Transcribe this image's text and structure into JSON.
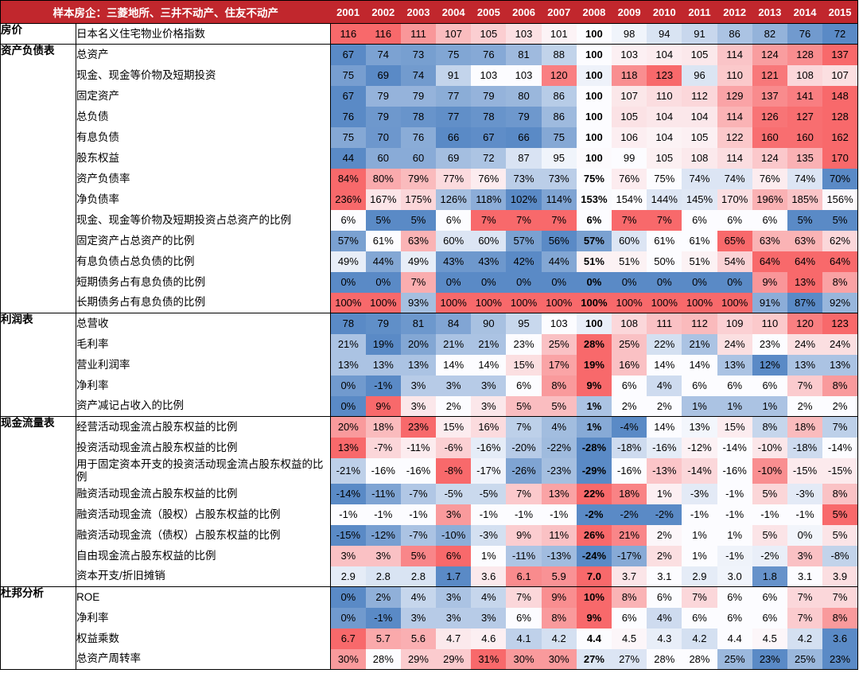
{
  "colors": {
    "header_background": "#C1272D",
    "scale_low": "#5A8AC6",
    "scale_mid": "#FCFCFF",
    "scale_high": "#F8696B"
  },
  "chart_data": {
    "type": "heatmap",
    "corner_header": "样本房企：三菱地所、三井不动产、住友不动产",
    "columns": [
      "2001",
      "2002",
      "2003",
      "2004",
      "2005",
      "2006",
      "2007",
      "2008",
      "2009",
      "2010",
      "2011",
      "2012",
      "2013",
      "2014",
      "2015"
    ],
    "sections": [
      {
        "category": "房价",
        "rows": [
          {
            "label": "日本名义住宅物业价格指数",
            "values": [
              "116",
              "116",
              "111",
              "107",
              "105",
              "103",
              "101",
              "100",
              "98",
              "94",
              "91",
              "86",
              "82",
              "76",
              "72"
            ]
          }
        ]
      },
      {
        "category": "资产负债表",
        "rows": [
          {
            "label": "总资产",
            "values": [
              "67",
              "74",
              "73",
              "75",
              "76",
              "81",
              "88",
              "100",
              "103",
              "104",
              "105",
              "114",
              "124",
              "128",
              "137"
            ]
          },
          {
            "label": "现金、现金等价物及短期投资",
            "values": [
              "75",
              "69",
              "74",
              "91",
              "103",
              "103",
              "120",
              "100",
              "118",
              "123",
              "96",
              "110",
              "121",
              "108",
              "107"
            ]
          },
          {
            "label": "固定资产",
            "values": [
              "67",
              "79",
              "79",
              "77",
              "79",
              "80",
              "86",
              "100",
              "107",
              "110",
              "112",
              "129",
              "137",
              "141",
              "148"
            ]
          },
          {
            "label": "总负债",
            "values": [
              "76",
              "79",
              "78",
              "77",
              "78",
              "79",
              "86",
              "100",
              "105",
              "104",
              "104",
              "114",
              "126",
              "127",
              "128"
            ]
          },
          {
            "label": "有息负债",
            "values": [
              "75",
              "70",
              "76",
              "66",
              "67",
              "66",
              "75",
              "100",
              "106",
              "104",
              "105",
              "122",
              "160",
              "160",
              "162"
            ]
          },
          {
            "label": "股东权益",
            "values": [
              "44",
              "60",
              "60",
              "69",
              "72",
              "87",
              "95",
              "100",
              "99",
              "105",
              "108",
              "114",
              "124",
              "135",
              "170"
            ]
          },
          {
            "label": "资产负债率",
            "values": [
              "84%",
              "80%",
              "79%",
              "77%",
              "76%",
              "73%",
              "73%",
              "75%",
              "76%",
              "75%",
              "74%",
              "74%",
              "76%",
              "74%",
              "70%"
            ]
          },
          {
            "label": "净负债率",
            "values": [
              "236%",
              "167%",
              "175%",
              "126%",
              "118%",
              "102%",
              "114%",
              "153%",
              "154%",
              "144%",
              "145%",
              "170%",
              "196%",
              "185%",
              "156%"
            ]
          },
          {
            "label": "现金、现金等价物及短期投资占总资产的比例",
            "values": [
              "6%",
              "5%",
              "5%",
              "6%",
              "7%",
              "7%",
              "7%",
              "6%",
              "7%",
              "7%",
              "6%",
              "6%",
              "6%",
              "5%",
              "5%"
            ]
          },
          {
            "label": "固定资产占总资产的比例",
            "values": [
              "57%",
              "61%",
              "63%",
              "60%",
              "60%",
              "57%",
              "56%",
              "57%",
              "60%",
              "61%",
              "61%",
              "65%",
              "63%",
              "63%",
              "62%"
            ]
          },
          {
            "label": "有息负债占总负债的比例",
            "values": [
              "49%",
              "44%",
              "49%",
              "43%",
              "43%",
              "42%",
              "44%",
              "51%",
              "51%",
              "50%",
              "51%",
              "54%",
              "64%",
              "64%",
              "64%"
            ]
          },
          {
            "label": "短期债务占有息负债的比例",
            "values": [
              "0%",
              "0%",
              "7%",
              "0%",
              "0%",
              "0%",
              "0%",
              "0%",
              "0%",
              "0%",
              "0%",
              "0%",
              "9%",
              "13%",
              "8%"
            ]
          },
          {
            "label": "长期债务占有息负债的比例",
            "values": [
              "100%",
              "100%",
              "93%",
              "100%",
              "100%",
              "100%",
              "100%",
              "100%",
              "100%",
              "100%",
              "100%",
              "100%",
              "91%",
              "87%",
              "92%"
            ]
          }
        ]
      },
      {
        "category": "利润表",
        "rows": [
          {
            "label": "总营收",
            "values": [
              "78",
              "79",
              "81",
              "84",
              "90",
              "95",
              "103",
              "100",
              "108",
              "111",
              "112",
              "109",
              "110",
              "120",
              "123"
            ]
          },
          {
            "label": "毛利率",
            "values": [
              "21%",
              "19%",
              "20%",
              "21%",
              "21%",
              "23%",
              "25%",
              "28%",
              "25%",
              "22%",
              "21%",
              "24%",
              "23%",
              "24%",
              "24%"
            ]
          },
          {
            "label": "营业利润率",
            "values": [
              "13%",
              "13%",
              "13%",
              "14%",
              "14%",
              "15%",
              "17%",
              "19%",
              "16%",
              "14%",
              "14%",
              "13%",
              "12%",
              "13%",
              "13%"
            ]
          },
          {
            "label": "净利率",
            "values": [
              "0%",
              "-1%",
              "3%",
              "3%",
              "3%",
              "6%",
              "8%",
              "9%",
              "6%",
              "4%",
              "6%",
              "6%",
              "6%",
              "7%",
              "8%"
            ]
          },
          {
            "label": "资产减记占收入的比例",
            "values": [
              "0%",
              "9%",
              "3%",
              "2%",
              "3%",
              "5%",
              "5%",
              "1%",
              "2%",
              "2%",
              "1%",
              "1%",
              "1%",
              "2%",
              "2%"
            ]
          }
        ]
      },
      {
        "category": "现金流量表",
        "rows": [
          {
            "label": "经营活动现金流占股东权益的比例",
            "values": [
              "20%",
              "18%",
              "23%",
              "15%",
              "16%",
              "7%",
              "4%",
              "1%",
              "-4%",
              "14%",
              "13%",
              "15%",
              "8%",
              "18%",
              "7%"
            ]
          },
          {
            "label": "投资活动现金流占股东权益的比例",
            "values": [
              "13%",
              "-7%",
              "-11%",
              "-6%",
              "-16%",
              "-20%",
              "-22%",
              "-28%",
              "-18%",
              "-16%",
              "-12%",
              "-14%",
              "-10%",
              "-18%",
              "-14%"
            ]
          },
          {
            "label": "用于固定资本开支的投资活动现金流占股东权益的比例",
            "values": [
              "-21%",
              "-16%",
              "-16%",
              "-8%",
              "-17%",
              "-26%",
              "-23%",
              "-29%",
              "-16%",
              "-13%",
              "-14%",
              "-16%",
              "-10%",
              "-15%",
              "-15%"
            ]
          },
          {
            "label": "融资活动现金流占股东权益的比例",
            "values": [
              "-14%",
              "-11%",
              "-7%",
              "-5%",
              "-5%",
              "7%",
              "13%",
              "22%",
              "18%",
              "1%",
              "-3%",
              "-1%",
              "5%",
              "-3%",
              "8%"
            ]
          },
          {
            "label": "融资活动现金流（股权）占股东权益的比例",
            "values": [
              "-1%",
              "-1%",
              "-1%",
              "3%",
              "-1%",
              "-1%",
              "-1%",
              "-2%",
              "-2%",
              "-2%",
              "-1%",
              "-1%",
              "-1%",
              "-1%",
              "5%"
            ]
          },
          {
            "label": "融资活动现金流（债权）占股东权益的比例",
            "values": [
              "-15%",
              "-12%",
              "-7%",
              "-10%",
              "-3%",
              "9%",
              "11%",
              "26%",
              "21%",
              "2%",
              "1%",
              "1%",
              "5%",
              "0%",
              "5%"
            ]
          },
          {
            "label": "自由现金流占股东权益的比例",
            "values": [
              "3%",
              "3%",
              "5%",
              "6%",
              "1%",
              "-11%",
              "-13%",
              "-24%",
              "-17%",
              "2%",
              "1%",
              "-1%",
              "-2%",
              "3%",
              "-8%"
            ]
          },
          {
            "label": "资本开支/折旧摊销",
            "values": [
              "2.9",
              "2.8",
              "2.8",
              "1.7",
              "3.6",
              "6.1",
              "5.9",
              "7.0",
              "3.7",
              "3.1",
              "2.9",
              "3.0",
              "1.8",
              "3.1",
              "3.9"
            ]
          }
        ]
      },
      {
        "category": "杜邦分析",
        "rows": [
          {
            "label": "ROE",
            "values": [
              "0%",
              "2%",
              "4%",
              "3%",
              "4%",
              "7%",
              "9%",
              "10%",
              "8%",
              "6%",
              "7%",
              "6%",
              "6%",
              "7%",
              "7%"
            ]
          },
          {
            "label": "净利率",
            "values": [
              "0%",
              "-1%",
              "3%",
              "3%",
              "3%",
              "6%",
              "8%",
              "9%",
              "6%",
              "4%",
              "6%",
              "6%",
              "6%",
              "7%",
              "8%"
            ]
          },
          {
            "label": "权益乘数",
            "values": [
              "6.7",
              "5.7",
              "5.6",
              "4.7",
              "4.6",
              "4.1",
              "4.2",
              "4.4",
              "4.5",
              "4.3",
              "4.2",
              "4.4",
              "4.5",
              "4.2",
              "3.6"
            ]
          },
          {
            "label": "总资产周转率",
            "values": [
              "30%",
              "28%",
              "29%",
              "29%",
              "31%",
              "30%",
              "30%",
              "27%",
              "27%",
              "28%",
              "28%",
              "25%",
              "23%",
              "25%",
              "23%"
            ]
          }
        ]
      }
    ]
  }
}
